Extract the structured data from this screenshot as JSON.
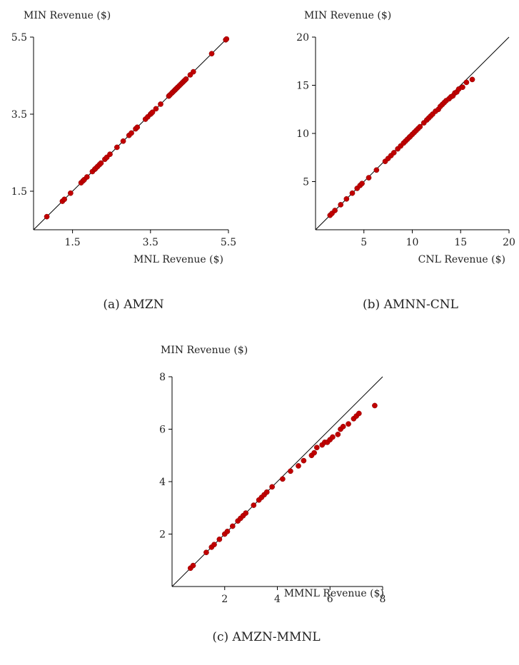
{
  "chart_data": [
    {
      "type": "scatter",
      "caption": "(a) AMZN",
      "xlabel": "MNL Revenue ($)",
      "ylabel": "MIN Revenue ($)",
      "xlim": [
        0.5,
        5.5
      ],
      "ylim": [
        0.5,
        5.5
      ],
      "xticks": [
        "1.5",
        "3.5",
        "5.5"
      ],
      "yticks": [
        "1.5",
        "3.5",
        "5.5"
      ],
      "diagonal": true,
      "point_color": "#c00000",
      "x": [
        0.84,
        1.24,
        1.29,
        1.45,
        1.72,
        1.77,
        1.8,
        1.87,
        2.01,
        2.07,
        2.09,
        2.14,
        2.19,
        2.23,
        2.33,
        2.38,
        2.46,
        2.64,
        2.8,
        2.95,
        3.01,
        3.12,
        3.16,
        3.37,
        3.43,
        3.5,
        3.52,
        3.55,
        3.64,
        3.76,
        3.97,
        4.0,
        4.05,
        4.08,
        4.12,
        4.14,
        4.17,
        4.2,
        4.24,
        4.28,
        4.32,
        4.35,
        4.38,
        4.41,
        4.52,
        4.6,
        5.07,
        5.43,
        5.45
      ],
      "y": [
        0.84,
        1.24,
        1.29,
        1.45,
        1.72,
        1.77,
        1.8,
        1.87,
        2.01,
        2.07,
        2.09,
        2.14,
        2.19,
        2.23,
        2.33,
        2.38,
        2.46,
        2.64,
        2.8,
        2.95,
        3.01,
        3.12,
        3.16,
        3.37,
        3.43,
        3.5,
        3.52,
        3.55,
        3.64,
        3.76,
        3.97,
        4.0,
        4.05,
        4.08,
        4.12,
        4.14,
        4.17,
        4.2,
        4.24,
        4.28,
        4.32,
        4.35,
        4.38,
        4.41,
        4.52,
        4.6,
        5.07,
        5.43,
        5.45
      ]
    },
    {
      "type": "scatter",
      "caption": "(b) AMNN-CNL",
      "xlabel": "CNL Revenue ($)",
      "ylabel": "MIN Revenue ($)",
      "xlim": [
        0,
        20
      ],
      "ylim": [
        0,
        20
      ],
      "xticks": [
        "5",
        "10",
        "15",
        "20"
      ],
      "yticks": [
        "5",
        "10",
        "15",
        "20"
      ],
      "diagonal": true,
      "point_color": "#c00000",
      "x": [
        1.5,
        1.7,
        2.0,
        2.6,
        3.2,
        3.8,
        4.3,
        4.6,
        4.8,
        5.5,
        6.3,
        7.2,
        7.5,
        7.8,
        8.1,
        8.5,
        8.8,
        9.1,
        9.3,
        9.5,
        9.7,
        9.8,
        10.0,
        10.2,
        10.4,
        10.6,
        10.8,
        11.2,
        11.5,
        11.7,
        11.9,
        12.1,
        12.4,
        12.7,
        12.9,
        13.1,
        13.3,
        13.5,
        13.8,
        14.0,
        14.2,
        14.4,
        14.6,
        14.8,
        15.2,
        15.6,
        16.2
      ],
      "y": [
        1.5,
        1.7,
        2.0,
        2.6,
        3.2,
        3.8,
        4.3,
        4.6,
        4.8,
        5.4,
        6.2,
        7.1,
        7.4,
        7.7,
        8.0,
        8.4,
        8.7,
        9.0,
        9.2,
        9.4,
        9.6,
        9.7,
        9.9,
        10.1,
        10.3,
        10.5,
        10.7,
        11.1,
        11.4,
        11.6,
        11.8,
        12.0,
        12.3,
        12.5,
        12.8,
        13.0,
        13.2,
        13.4,
        13.6,
        13.8,
        13.9,
        14.2,
        14.3,
        14.6,
        14.8,
        15.3,
        15.6
      ]
    },
    {
      "type": "scatter",
      "caption": "(c) AMZN-MMNL",
      "xlabel": "MMNL Revenue ($)",
      "ylabel": "MIN Revenue ($)",
      "xlim": [
        0,
        8
      ],
      "ylim": [
        0,
        8
      ],
      "xticks": [
        "2",
        "4",
        "6",
        "8"
      ],
      "yticks": [
        "2",
        "4",
        "6",
        "8"
      ],
      "diagonal": true,
      "point_color": "#c00000",
      "x": [
        0.7,
        0.8,
        1.3,
        1.5,
        1.6,
        1.8,
        2.0,
        2.1,
        2.3,
        2.5,
        2.6,
        2.7,
        2.8,
        3.1,
        3.3,
        3.4,
        3.5,
        3.6,
        3.8,
        4.2,
        4.5,
        4.8,
        5.0,
        5.3,
        5.4,
        5.5,
        5.7,
        5.8,
        5.9,
        6.0,
        6.1,
        6.3,
        6.4,
        6.5,
        6.7,
        6.9,
        7.0,
        7.1,
        7.7
      ],
      "y": [
        0.7,
        0.8,
        1.3,
        1.5,
        1.6,
        1.8,
        2.0,
        2.1,
        2.3,
        2.5,
        2.6,
        2.7,
        2.8,
        3.1,
        3.3,
        3.4,
        3.5,
        3.6,
        3.8,
        4.1,
        4.4,
        4.6,
        4.8,
        5.0,
        5.1,
        5.3,
        5.4,
        5.5,
        5.5,
        5.6,
        5.7,
        5.8,
        6.0,
        6.1,
        6.2,
        6.4,
        6.5,
        6.6,
        6.9
      ]
    }
  ]
}
